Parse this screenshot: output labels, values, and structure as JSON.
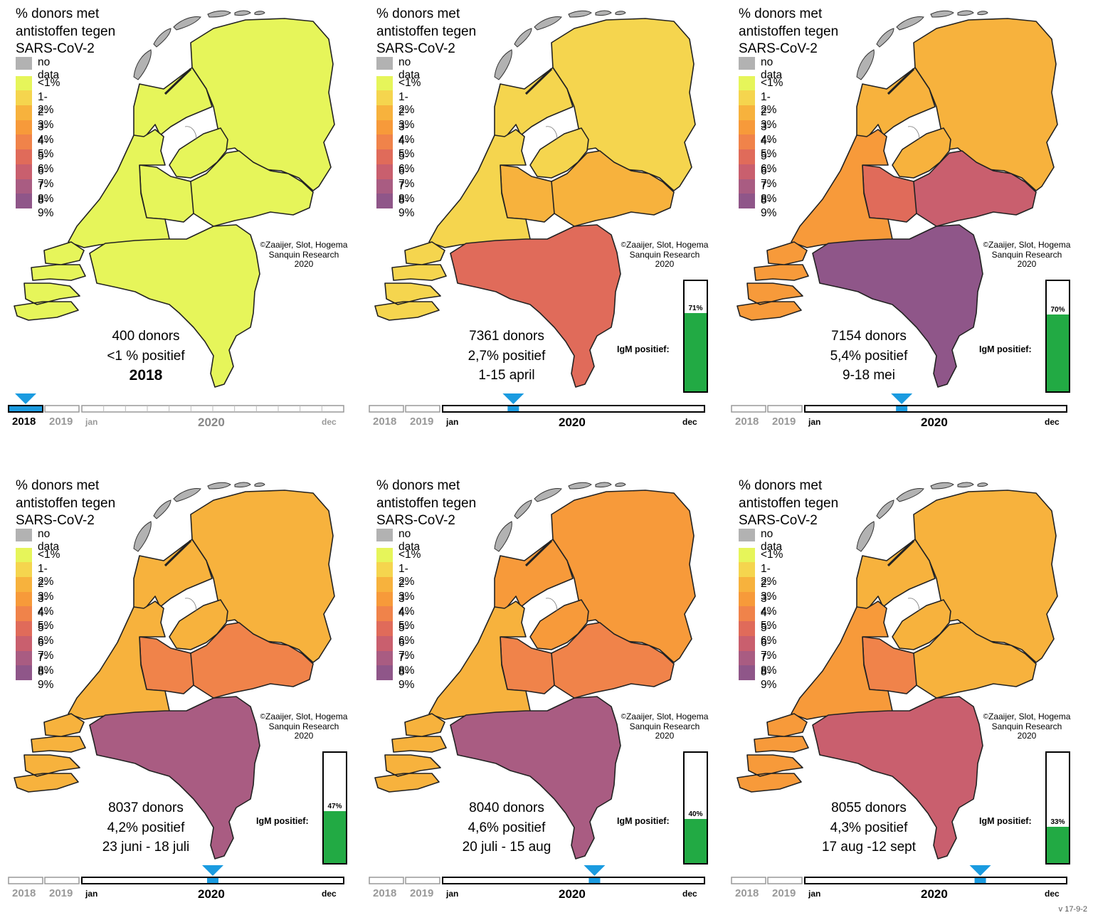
{
  "common": {
    "title": "% donors met\nantistoffen tegen\nSARS-CoV-2",
    "legend": [
      {
        "label": "no data",
        "color": "#b2b2b2"
      },
      {
        "label": "<1%",
        "color": "#e6f55a"
      },
      {
        "label": "1-2%",
        "color": "#f5d54e"
      },
      {
        "label": "2-3%",
        "color": "#f7b23d"
      },
      {
        "label": "3-4%",
        "color": "#f79a3a"
      },
      {
        "label": "4-5%",
        "color": "#f0834a"
      },
      {
        "label": "5-6%",
        "color": "#e06b5a"
      },
      {
        "label": "6-7%",
        "color": "#c95f6e"
      },
      {
        "label": "7-8%",
        "color": "#a95c82"
      },
      {
        "label": "8-9%",
        "color": "#8f5689"
      }
    ],
    "credit": {
      "copyright": "©",
      "authors": "Zaaijer, Slot, Hogema",
      "org": "Sanquin Research",
      "year": "2020"
    },
    "igm_label": "IgM positief:",
    "timeline": {
      "y2018": "2018",
      "y2019": "2019",
      "y2020": "2020",
      "jan": "jan",
      "dec": "dec"
    },
    "marker_color": "#1a9be0",
    "version": "v 17-9-2"
  },
  "panels": [
    {
      "donors": "400   donors",
      "positive": "<1 % positief",
      "period": "2018",
      "period_bold": true,
      "igm": null,
      "timeline_active": "2018",
      "marker": null,
      "regions": {
        "north": "<1%",
        "nh": "<1%",
        "utrecht": "<1%",
        "flevoland": "<1%",
        "gelderland": "<1%",
        "zh": "<1%",
        "zeeland": "<1%",
        "south": "<1%"
      }
    },
    {
      "donors": "7361 donors",
      "positive": "2,7% positief",
      "period": "1-15 april",
      "period_bold": false,
      "igm": 71,
      "igm_text": "71%",
      "timeline_active": "2020",
      "marker": 0.27,
      "regions": {
        "north": "1-2%",
        "nh": "1-2%",
        "utrecht": "2-3%",
        "flevoland": "1-2%",
        "gelderland": "2-3%",
        "zh": "1-2%",
        "zeeland": "1-2%",
        "south": "5-6%"
      }
    },
    {
      "donors": "7154 donors",
      "positive": "5,4% positief",
      "period": "9-18 mei",
      "period_bold": false,
      "igm": 70,
      "igm_text": "70%",
      "timeline_active": "2020",
      "marker": 0.37,
      "regions": {
        "north": "2-3%",
        "nh": "2-3%",
        "utrecht": "5-6%",
        "flevoland": "2-3%",
        "gelderland": "6-7%",
        "zh": "3-4%",
        "zeeland": "3-4%",
        "south": "8-9%"
      }
    },
    {
      "donors": "8037 donors",
      "positive": "4,2% positief",
      "period": "23 juni - 18 juli",
      "period_bold": false,
      "igm": 47,
      "igm_text": "47%",
      "timeline_active": "2020",
      "marker": 0.5,
      "regions": {
        "north": "2-3%",
        "nh": "2-3%",
        "utrecht": "4-5%",
        "flevoland": "2-3%",
        "gelderland": "4-5%",
        "zh": "2-3%",
        "zeeland": "2-3%",
        "south": "7-8%"
      }
    },
    {
      "donors": "8040 donors",
      "positive": "4,6% positief",
      "period": "20 juli  - 15 aug",
      "period_bold": false,
      "igm": 40,
      "igm_text": "40%",
      "timeline_active": "2020",
      "marker": 0.58,
      "regions": {
        "north": "3-4%",
        "nh": "3-4%",
        "utrecht": "4-5%",
        "flevoland": "3-4%",
        "gelderland": "4-5%",
        "zh": "2-3%",
        "zeeland": "2-3%",
        "south": "7-8%"
      }
    },
    {
      "donors": "8055 donors",
      "positive": "4,3% positief",
      "period": "17 aug -12 sept",
      "period_bold": false,
      "igm": 33,
      "igm_text": "33%",
      "timeline_active": "2020",
      "marker": 0.67,
      "regions": {
        "north": "2-3%",
        "nh": "2-3%",
        "utrecht": "4-5%",
        "flevoland": "2-3%",
        "gelderland": "2-3%",
        "zh": "3-4%",
        "zeeland": "3-4%",
        "south": "6-7%"
      }
    }
  ]
}
